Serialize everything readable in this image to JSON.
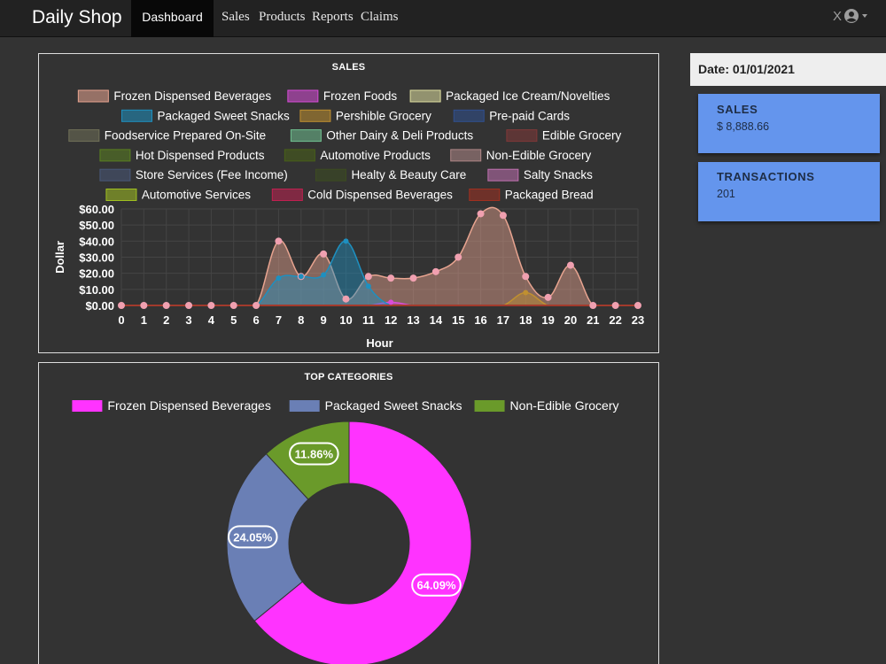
{
  "navbar": {
    "brand": "Daily Shop",
    "active_tab": "Dashboard",
    "links": [
      "Sales",
      "Products",
      "Reports",
      "Claims"
    ],
    "user_label": "X"
  },
  "sidebar": {
    "date_label": "Date: 01/01/2021",
    "cards": [
      {
        "label": "SALES",
        "value": "$ 8,888.66"
      },
      {
        "label": "TRANSACTIONS",
        "value": "201"
      }
    ]
  },
  "colors": {
    "background": "#333333",
    "navbar": "#222222",
    "card": "#6495ed",
    "date_box": "#eeeeee"
  },
  "chart_data": [
    {
      "type": "area",
      "title": "SALES",
      "xlabel": "Hour",
      "ylabel": "Dollar",
      "ylim": [
        0,
        60
      ],
      "y_ticks": [
        "$0.00",
        "$10.00",
        "$20.00",
        "$30.00",
        "$40.00",
        "$50.00",
        "$60.00"
      ],
      "x": [
        0,
        1,
        2,
        3,
        4,
        5,
        6,
        7,
        8,
        9,
        10,
        11,
        12,
        13,
        14,
        15,
        16,
        17,
        18,
        19,
        20,
        21,
        22,
        23
      ],
      "legend_position": "top",
      "grid": true,
      "series": [
        {
          "name": "Frozen Dispensed Beverages",
          "color": "#e8a490",
          "values": [
            0,
            0,
            0,
            0,
            0,
            0,
            0,
            40,
            18,
            32,
            4,
            18,
            17,
            17,
            21,
            30,
            57,
            56,
            18,
            5,
            25,
            0,
            0,
            0
          ]
        },
        {
          "name": "Frozen Foods",
          "color": "#d94cd9",
          "values": [
            0,
            0,
            0,
            0,
            0,
            0,
            0,
            0,
            0,
            0,
            0,
            0,
            2,
            0,
            0,
            0,
            0,
            0,
            0,
            0,
            0,
            0,
            0,
            0
          ]
        },
        {
          "name": "Packaged Ice Cream/Novelties",
          "color": "#e0e0a0",
          "values": [
            0,
            0,
            0,
            0,
            0,
            0,
            0,
            0,
            0,
            0,
            0,
            0,
            0,
            0,
            0,
            0,
            0,
            0,
            0,
            0,
            0,
            0,
            0,
            0
          ]
        },
        {
          "name": "Packaged Sweet Snacks",
          "color": "#1e90c0",
          "values": [
            0,
            0,
            0,
            0,
            0,
            0,
            0,
            17,
            18,
            19,
            40,
            12,
            0,
            0,
            0,
            0,
            0,
            0,
            0,
            0,
            0,
            0,
            0,
            0
          ]
        },
        {
          "name": "Pershible Grocery",
          "color": "#c09030",
          "values": [
            0,
            0,
            0,
            0,
            0,
            0,
            0,
            0,
            0,
            0,
            0,
            0,
            0,
            0,
            0,
            0,
            0,
            0,
            8,
            0,
            0,
            0,
            0,
            0
          ]
        },
        {
          "name": "Pre-paid Cards",
          "color": "#305090",
          "values": [
            0,
            0,
            0,
            0,
            0,
            0,
            0,
            0,
            0,
            0,
            0,
            0,
            0,
            0,
            0,
            0,
            0,
            0,
            0,
            0,
            0,
            0,
            0,
            0
          ]
        },
        {
          "name": "Foodservice Prepared On-Site",
          "color": "#707058",
          "values": [
            0,
            0,
            0,
            0,
            0,
            0,
            0,
            0,
            0,
            0,
            0,
            0,
            0,
            0,
            0,
            0,
            0,
            0,
            0,
            0,
            0,
            0,
            0,
            0
          ]
        },
        {
          "name": "Other Dairy & Deli Products",
          "color": "#70c090",
          "values": [
            0,
            0,
            0,
            0,
            0,
            0,
            0,
            0,
            0,
            0,
            0,
            0,
            0,
            0,
            0,
            0,
            0,
            0,
            0,
            0,
            0,
            0,
            0,
            0
          ]
        },
        {
          "name": "Edible Grocery",
          "color": "#803838",
          "values": [
            0,
            0,
            0,
            0,
            0,
            0,
            0,
            0,
            0,
            0,
            0,
            0,
            0,
            0,
            0,
            0,
            0,
            0,
            0,
            0,
            0,
            0,
            0,
            0
          ]
        },
        {
          "name": "Hot Dispensed Products",
          "color": "#5a8020",
          "values": [
            0,
            0,
            0,
            0,
            0,
            0,
            0,
            0,
            0,
            0,
            0,
            0,
            0,
            0,
            0,
            0,
            0,
            0,
            0,
            0,
            0,
            0,
            0,
            0
          ]
        },
        {
          "name": "Automotive Products",
          "color": "#486018",
          "values": [
            0,
            0,
            0,
            0,
            0,
            0,
            0,
            0,
            0,
            0,
            0,
            0,
            0,
            0,
            0,
            0,
            0,
            0,
            0,
            0,
            0,
            0,
            0,
            0
          ]
        },
        {
          "name": "Non-Edible Grocery",
          "color": "#b08888",
          "values": [
            0,
            0,
            0,
            0,
            0,
            0,
            0,
            0,
            0,
            0,
            0,
            0,
            0,
            0,
            0,
            0,
            0,
            0,
            0,
            0,
            0,
            0,
            0,
            0
          ]
        },
        {
          "name": "Store Services (Fee Income)",
          "color": "#485878",
          "values": [
            0,
            0,
            0,
            0,
            0,
            0,
            0,
            0,
            0,
            0,
            0,
            0,
            0,
            0,
            0,
            0,
            0,
            0,
            0,
            0,
            0,
            0,
            0,
            0
          ]
        },
        {
          "name": "Healty & Beauty Care",
          "color": "#3c4c20",
          "values": [
            0,
            0,
            0,
            0,
            0,
            0,
            0,
            0,
            0,
            0,
            0,
            0,
            0,
            0,
            0,
            0,
            0,
            0,
            0,
            0,
            0,
            0,
            0,
            0
          ]
        },
        {
          "name": "Salty Snacks",
          "color": "#c070b0",
          "values": [
            0,
            0,
            0,
            0,
            0,
            0,
            0,
            0,
            0,
            0,
            0,
            0,
            0,
            0,
            0,
            0,
            0,
            0,
            0,
            0,
            0,
            0,
            0,
            0
          ]
        },
        {
          "name": "Automotive Services",
          "color": "#a0c020",
          "values": [
            0,
            0,
            0,
            0,
            0,
            0,
            0,
            0,
            0,
            0,
            0,
            0,
            0,
            0,
            0,
            0,
            0,
            0,
            0,
            0,
            0,
            0,
            0,
            0
          ]
        },
        {
          "name": "Cold Dispensed Beverages",
          "color": "#c02050",
          "values": [
            0,
            0,
            0,
            0,
            0,
            0,
            0,
            0,
            0,
            0,
            0,
            0,
            0,
            0,
            0,
            0,
            0,
            0,
            0,
            0,
            0,
            0,
            0,
            0
          ]
        },
        {
          "name": "Packaged Bread",
          "color": "#a03020",
          "values": [
            0,
            0,
            0,
            0,
            0,
            0,
            0,
            0,
            0,
            0,
            0,
            0,
            0,
            0,
            0,
            0,
            0,
            0,
            0,
            0,
            0,
            0,
            0,
            0
          ]
        }
      ]
    },
    {
      "type": "pie",
      "title": "TOP CATEGORIES",
      "legend_position": "top",
      "categories": [
        "Frozen Dispensed Beverages",
        "Packaged Sweet Snacks",
        "Non-Edible Grocery"
      ],
      "values": [
        64.09,
        24.05,
        11.86
      ],
      "labels": [
        "64.09%",
        "24.05%",
        "11.86%"
      ],
      "colors": [
        "#ff33ff",
        "#6a7fb5",
        "#6a9a2a"
      ],
      "donut": true
    }
  ]
}
